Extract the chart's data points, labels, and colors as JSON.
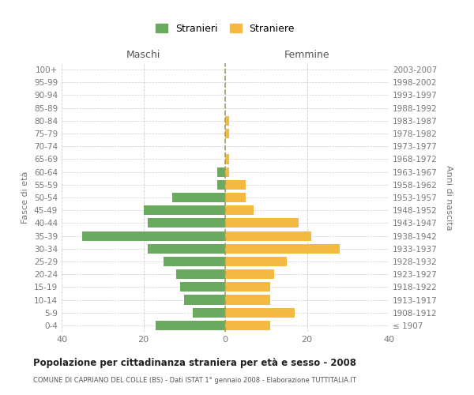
{
  "age_groups": [
    "100+",
    "95-99",
    "90-94",
    "85-89",
    "80-84",
    "75-79",
    "70-74",
    "65-69",
    "60-64",
    "55-59",
    "50-54",
    "45-49",
    "40-44",
    "35-39",
    "30-34",
    "25-29",
    "20-24",
    "15-19",
    "10-14",
    "5-9",
    "0-4"
  ],
  "birth_years": [
    "≤ 1907",
    "1908-1912",
    "1913-1917",
    "1918-1922",
    "1923-1927",
    "1928-1932",
    "1933-1937",
    "1938-1942",
    "1943-1947",
    "1948-1952",
    "1953-1957",
    "1958-1962",
    "1963-1967",
    "1968-1972",
    "1973-1977",
    "1978-1982",
    "1983-1987",
    "1988-1992",
    "1993-1997",
    "1998-2002",
    "2003-2007"
  ],
  "males": [
    0,
    0,
    0,
    0,
    0,
    0,
    0,
    0,
    2,
    2,
    13,
    20,
    19,
    35,
    19,
    15,
    12,
    11,
    10,
    8,
    17
  ],
  "females": [
    0,
    0,
    0,
    0,
    1,
    1,
    0,
    1,
    1,
    5,
    5,
    7,
    18,
    21,
    28,
    15,
    12,
    11,
    11,
    17,
    11
  ],
  "male_color": "#6aaa5e",
  "female_color": "#f5b942",
  "title": "Popolazione per cittadinanza straniera per età e sesso - 2008",
  "subtitle": "COMUNE DI CAPRIANO DEL COLLE (BS) - Dati ISTAT 1° gennaio 2008 - Elaborazione TUTTITALIA.IT",
  "xlabel_left": "Maschi",
  "xlabel_right": "Femmine",
  "ylabel_left": "Fasce di età",
  "ylabel_right": "Anni di nascita",
  "legend_male": "Stranieri",
  "legend_female": "Straniere",
  "xlim": 40,
  "background_color": "#ffffff",
  "grid_color": "#cccccc",
  "bar_height": 0.75
}
